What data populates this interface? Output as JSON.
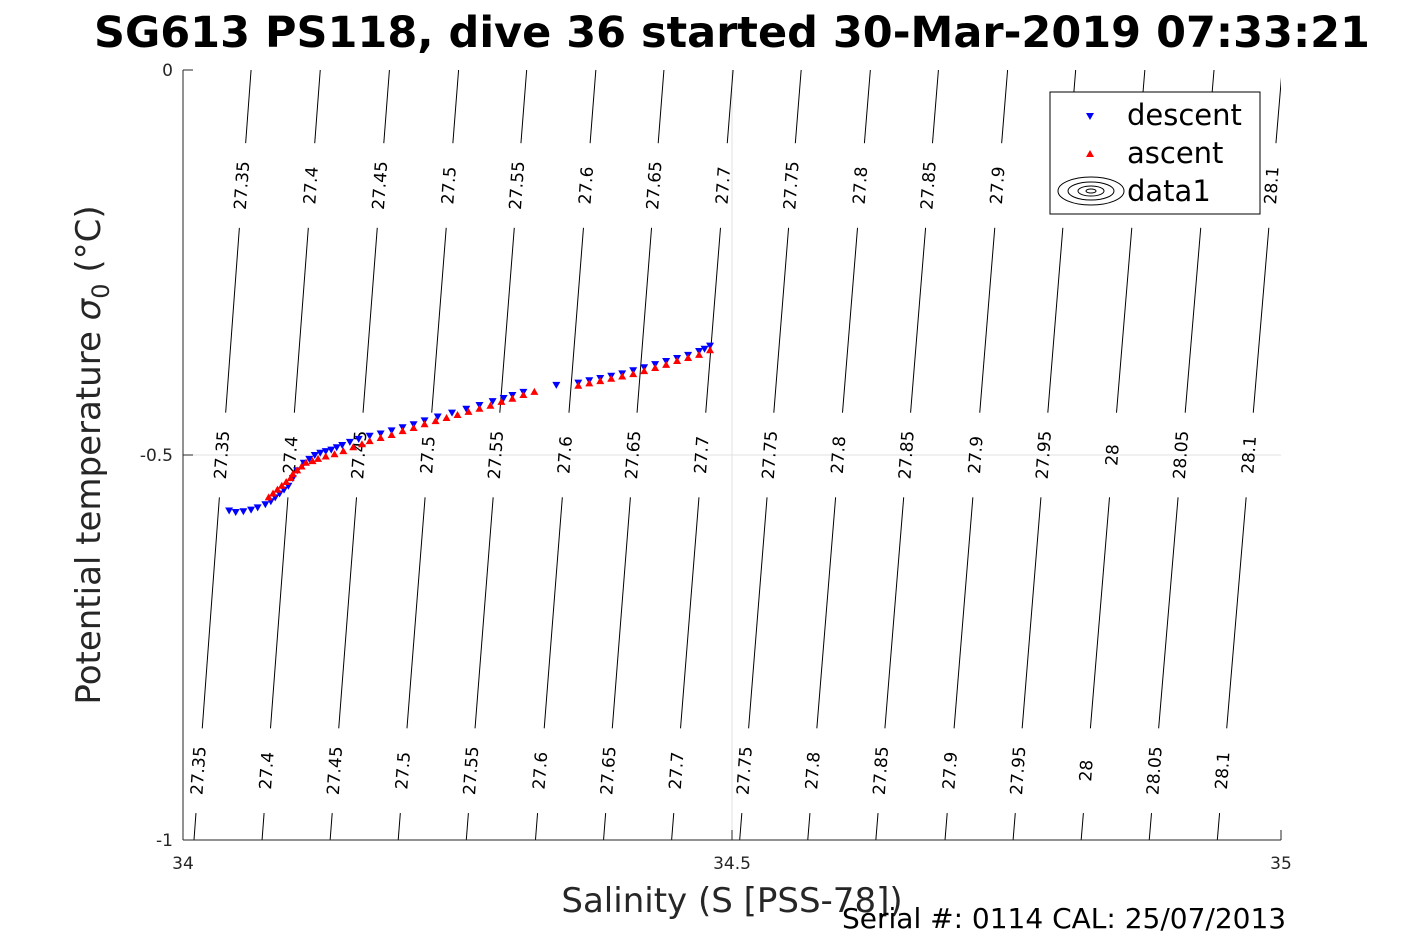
{
  "chart_data": {
    "type": "scatter",
    "title": "SG613 PS118, dive 36 started 30-Mar-2019 07:33:21",
    "xlabel": "Salinity (S [PSS-78])",
    "ylabel_main": "Potential temperature ",
    "ylabel_sigma": "σ",
    "ylabel_sub": "0",
    "ylabel_unit": " (°C)",
    "xlim": [
      34,
      35
    ],
    "ylim": [
      -1,
      0
    ],
    "xticks": [
      34,
      34.5,
      35
    ],
    "xtick_labels": [
      "34",
      "34.5",
      "35"
    ],
    "yticks": [
      -1,
      -0.5,
      0
    ],
    "ytick_labels": [
      "-1",
      "-0.5",
      "0"
    ],
    "grid": true,
    "legend": {
      "position": "top-right",
      "entries": [
        {
          "label": "descent",
          "color": "#0000ff",
          "marker": "triangle-down"
        },
        {
          "label": "ascent",
          "color": "#ff0000",
          "marker": "triangle-up"
        },
        {
          "label": "data1",
          "color": "#000000",
          "marker": "contour"
        }
      ]
    },
    "contours": {
      "levels": [
        27.35,
        27.4,
        27.45,
        27.5,
        27.55,
        27.6,
        27.65,
        27.7,
        27.75,
        27.8,
        27.85,
        27.9,
        27.95,
        28,
        28.05,
        28.1
      ],
      "labels": [
        "27.35",
        "27.4",
        "27.45",
        "27.5",
        "27.55",
        "27.6",
        "27.65",
        "27.7",
        "27.75",
        "27.8",
        "27.85",
        "27.9",
        "27.95",
        "28",
        "28.05",
        "28.1"
      ],
      "salinity_at_top": [
        34.062,
        34.125,
        34.188,
        34.251,
        34.313,
        34.376,
        34.438,
        34.501,
        34.563,
        34.626,
        34.688,
        34.751,
        34.813,
        34.876,
        34.939,
        35.001
      ],
      "salinity_at_bottom": [
        34.01,
        34.072,
        34.134,
        34.196,
        34.258,
        34.321,
        34.383,
        34.445,
        34.507,
        34.569,
        34.631,
        34.694,
        34.756,
        34.818,
        34.88,
        34.942
      ]
    },
    "series": [
      {
        "name": "descent",
        "color": "#0000ff",
        "marker": "triangle-down",
        "x": [
          34.042,
          34.048,
          34.055,
          34.062,
          34.068,
          34.075,
          34.08,
          34.084,
          34.088,
          34.092,
          34.096,
          34.1,
          34.104,
          34.11,
          34.115,
          34.12,
          34.125,
          34.13,
          34.135,
          34.14,
          34.145,
          34.152,
          34.16,
          34.17,
          34.18,
          34.19,
          34.2,
          34.21,
          34.22,
          34.232,
          34.245,
          34.258,
          34.27,
          34.282,
          34.292,
          34.3,
          34.31,
          34.34,
          34.36,
          34.37,
          34.38,
          34.39,
          34.4,
          34.41,
          34.42,
          34.43,
          34.44,
          34.45,
          34.46,
          34.47,
          34.475,
          34.48
        ],
        "y": [
          -0.572,
          -0.574,
          -0.573,
          -0.571,
          -0.568,
          -0.564,
          -0.56,
          -0.555,
          -0.55,
          -0.545,
          -0.54,
          -0.53,
          -0.52,
          -0.51,
          -0.505,
          -0.5,
          -0.497,
          -0.495,
          -0.493,
          -0.49,
          -0.487,
          -0.483,
          -0.479,
          -0.475,
          -0.472,
          -0.468,
          -0.464,
          -0.46,
          -0.455,
          -0.45,
          -0.445,
          -0.44,
          -0.435,
          -0.43,
          -0.426,
          -0.422,
          -0.418,
          -0.409,
          -0.406,
          -0.403,
          -0.4,
          -0.397,
          -0.394,
          -0.39,
          -0.386,
          -0.382,
          -0.378,
          -0.374,
          -0.37,
          -0.365,
          -0.362,
          -0.358
        ]
      },
      {
        "name": "ascent",
        "color": "#ff0000",
        "marker": "triangle-up",
        "x": [
          34.078,
          34.082,
          34.086,
          34.09,
          34.094,
          34.098,
          34.1,
          34.104,
          34.108,
          34.112,
          34.118,
          34.123,
          34.13,
          34.138,
          34.146,
          34.155,
          34.163,
          34.17,
          34.18,
          34.19,
          34.2,
          34.21,
          34.22,
          34.23,
          34.24,
          34.25,
          34.26,
          34.27,
          34.28,
          34.29,
          34.3,
          34.31,
          34.32,
          34.36,
          34.37,
          34.38,
          34.39,
          34.4,
          34.41,
          34.42,
          34.43,
          34.44,
          34.45,
          34.46,
          34.47,
          34.48
        ],
        "y": [
          -0.555,
          -0.55,
          -0.545,
          -0.54,
          -0.535,
          -0.53,
          -0.525,
          -0.52,
          -0.515,
          -0.51,
          -0.508,
          -0.505,
          -0.502,
          -0.499,
          -0.495,
          -0.49,
          -0.486,
          -0.482,
          -0.478,
          -0.474,
          -0.469,
          -0.465,
          -0.46,
          -0.456,
          -0.452,
          -0.448,
          -0.444,
          -0.44,
          -0.436,
          -0.431,
          -0.427,
          -0.422,
          -0.418,
          -0.41,
          -0.407,
          -0.404,
          -0.401,
          -0.398,
          -0.395,
          -0.391,
          -0.387,
          -0.383,
          -0.378,
          -0.374,
          -0.37,
          -0.364
        ]
      }
    ]
  },
  "footer": {
    "serial": "Serial #: 0114  CAL: 25/07/2013"
  }
}
